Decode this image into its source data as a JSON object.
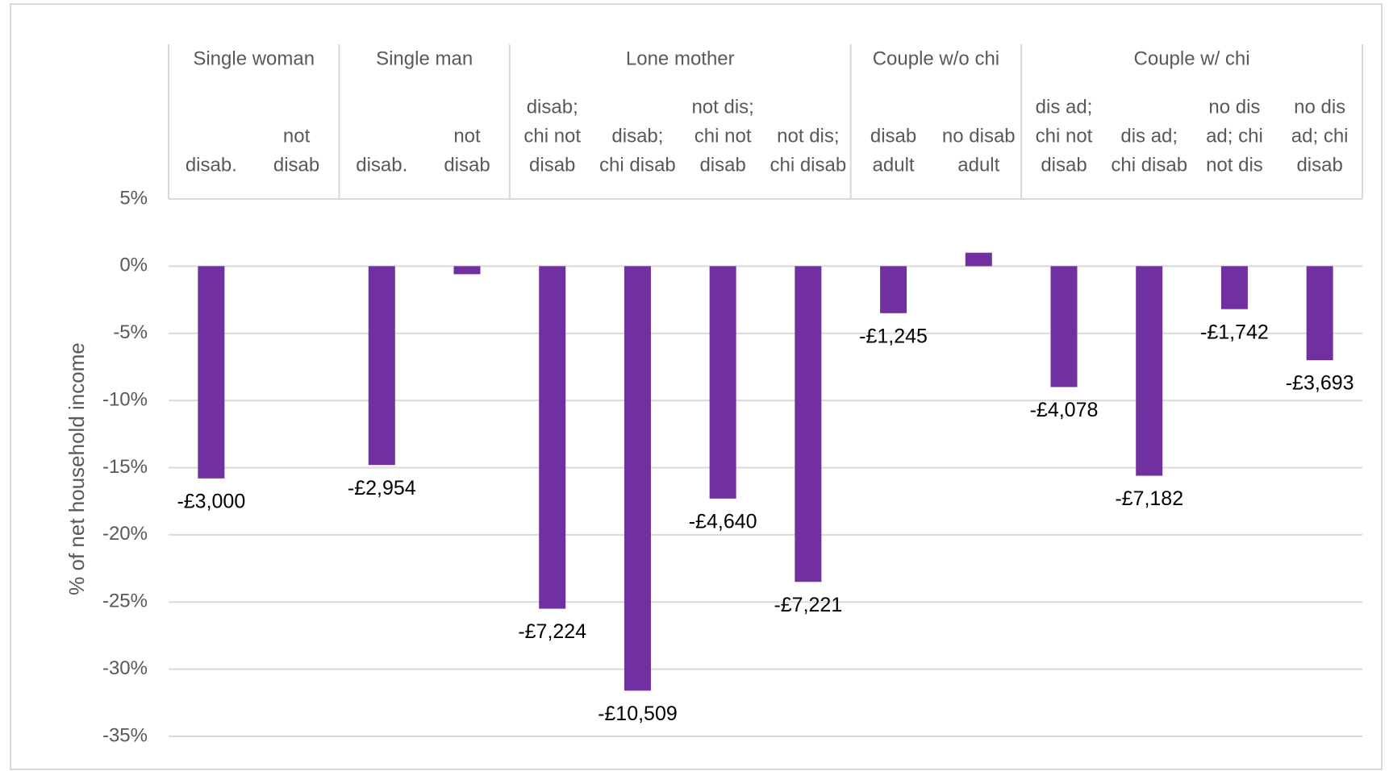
{
  "chart_data": {
    "type": "bar",
    "y_label": "% of net household income",
    "color": "#7030a0",
    "grid": true,
    "ylim": [
      -35,
      5
    ],
    "yticks": [
      {
        "value": 5,
        "label": "5%"
      },
      {
        "value": 0,
        "label": "0%"
      },
      {
        "value": -5,
        "label": "-5%"
      },
      {
        "value": -10,
        "label": "-10%"
      },
      {
        "value": -15,
        "label": "-15%"
      },
      {
        "value": -20,
        "label": "-20%"
      },
      {
        "value": -25,
        "label": "-25%"
      },
      {
        "value": -30,
        "label": "-30%"
      },
      {
        "value": -35,
        "label": "-35%"
      }
    ],
    "groups": [
      {
        "name": "Single woman",
        "categories": [
          [
            "disab."
          ],
          [
            "not",
            "disab"
          ]
        ],
        "values": [
          -15.8,
          0
        ],
        "annotations": [
          "-£3,000",
          null
        ]
      },
      {
        "name": "Single man",
        "categories": [
          [
            "disab."
          ],
          [
            "not",
            "disab"
          ]
        ],
        "values": [
          -14.8,
          -0.6
        ],
        "annotations": [
          "-£2,954",
          null
        ]
      },
      {
        "name": "Lone mother",
        "categories": [
          [
            "disab;",
            "chi not",
            "disab"
          ],
          [
            "disab;",
            "chi disab"
          ],
          [
            "not dis;",
            "chi not",
            "disab"
          ],
          [
            "not dis;",
            "chi disab"
          ]
        ],
        "values": [
          -25.5,
          -31.6,
          -17.3,
          -23.5
        ],
        "annotations": [
          "-£7,224",
          "-£10,509",
          "-£4,640",
          "-£7,221"
        ]
      },
      {
        "name": "Couple w/o chi",
        "categories": [
          [
            "disab",
            "adult"
          ],
          [
            "no disab",
            "adult"
          ]
        ],
        "values": [
          -3.5,
          1.0
        ],
        "annotations": [
          "-£1,245",
          null
        ]
      },
      {
        "name": "Couple w/ chi",
        "categories": [
          [
            "dis ad;",
            "chi not",
            "disab"
          ],
          [
            "dis ad;",
            "chi disab"
          ],
          [
            "no dis",
            "ad; chi",
            "not dis"
          ],
          [
            "no dis",
            "ad; chi",
            "disab"
          ]
        ],
        "values": [
          -9.0,
          -15.6,
          -3.2,
          -7.0
        ],
        "annotations": [
          "-£4,078",
          "-£7,182",
          "-£1,742",
          "-£3,693"
        ]
      }
    ]
  }
}
